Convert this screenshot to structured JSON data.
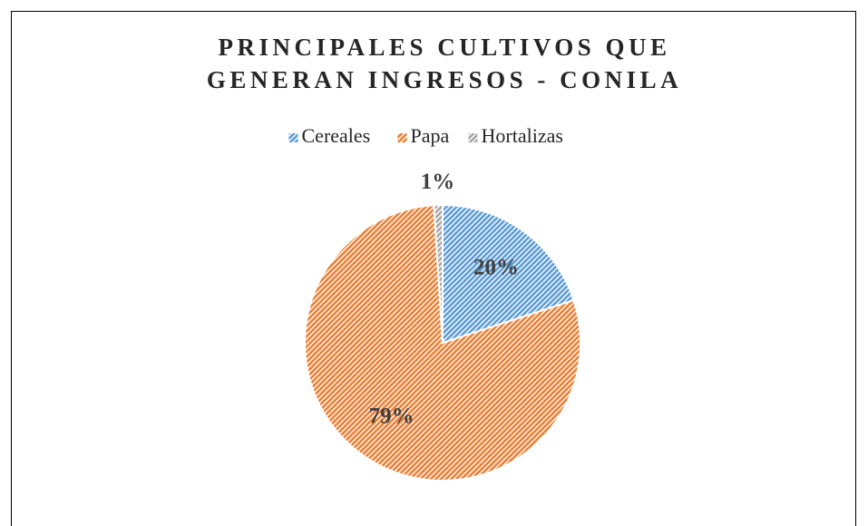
{
  "chart_data": {
    "type": "pie",
    "title": "PRINCIPALES CULTIVOS QUE GENERAN INGRESOS - CONILA",
    "categories": [
      "Cereales",
      "Papa",
      "Hortalizas"
    ],
    "values": [
      20,
      79,
      1
    ],
    "value_labels": [
      "20%",
      "79%",
      "1%"
    ],
    "colors": [
      "#5b9bd5",
      "#ed7d31",
      "#a5a5a5"
    ],
    "legend": "top"
  }
}
